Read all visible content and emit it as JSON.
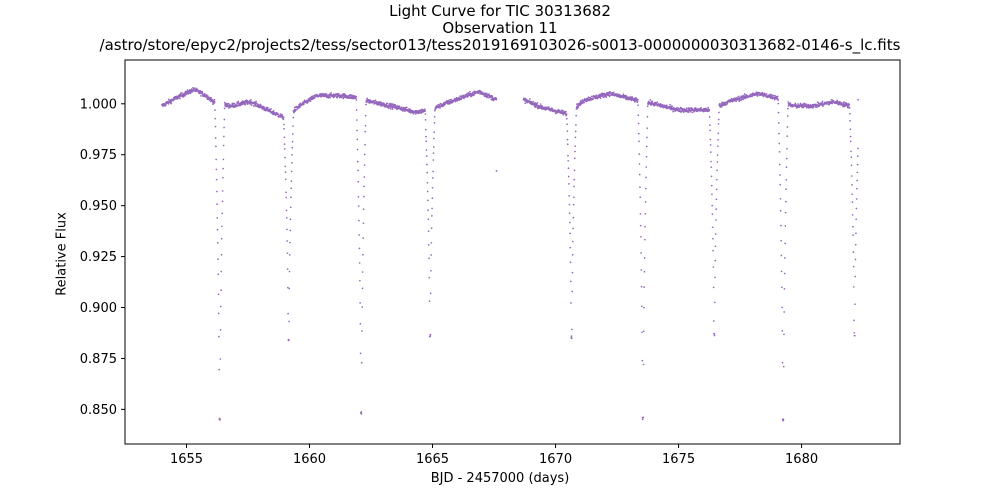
{
  "chart_data": {
    "type": "scatter",
    "title_lines": [
      "Light Curve for TIC 30313682",
      "Observation 11",
      "/astro/store/epyc2/projects2/tess/sector013/tess2019169103026-s0013-0000000030313682-0146-s_lc.fits"
    ],
    "xlabel": "BJD - 2457000 (days)",
    "ylabel": "Relative Flux",
    "xlim": [
      1652.5,
      1684.0
    ],
    "ylim": [
      0.833,
      1.0215
    ],
    "xticks": [
      1655,
      1660,
      1665,
      1670,
      1675,
      1680
    ],
    "xtick_labels": [
      "1655",
      "1660",
      "1665",
      "1670",
      "1675",
      "1680"
    ],
    "yticks": [
      0.85,
      0.875,
      0.9,
      0.925,
      0.95,
      0.975,
      1.0
    ],
    "ytick_labels": [
      "0.850",
      "0.875",
      "0.900",
      "0.925",
      "0.950",
      "0.975",
      "1.000"
    ],
    "marker_color": "#9467bd",
    "segments": [
      {
        "start": 1654.0,
        "end": 1667.6
      },
      {
        "start": 1668.7,
        "end": 1682.3
      }
    ],
    "baseline": [
      [
        1654.0,
        0.999
      ],
      [
        1654.6,
        1.003
      ],
      [
        1655.3,
        1.007
      ],
      [
        1655.8,
        1.004
      ],
      [
        1656.2,
        1.0
      ],
      [
        1656.8,
        0.999
      ],
      [
        1657.6,
        1.001
      ],
      [
        1658.3,
        0.997
      ],
      [
        1659.0,
        0.993
      ],
      [
        1659.6,
        0.999
      ],
      [
        1660.3,
        1.004
      ],
      [
        1661.3,
        1.004
      ],
      [
        1662.0,
        1.003
      ],
      [
        1662.5,
        1.001
      ],
      [
        1663.3,
        0.999
      ],
      [
        1664.3,
        0.996
      ],
      [
        1664.9,
        0.997
      ],
      [
        1665.5,
        1.0
      ],
      [
        1666.4,
        1.004
      ],
      [
        1666.9,
        1.006
      ],
      [
        1667.6,
        1.002
      ],
      [
        1668.7,
        1.002
      ],
      [
        1669.5,
        0.998
      ],
      [
        1670.5,
        0.995
      ],
      [
        1671.2,
        1.002
      ],
      [
        1672.2,
        1.005
      ],
      [
        1673.2,
        1.002
      ],
      [
        1674.0,
        1.0
      ],
      [
        1675.0,
        0.997
      ],
      [
        1676.3,
        0.997
      ],
      [
        1677.0,
        1.001
      ],
      [
        1678.2,
        1.005
      ],
      [
        1679.0,
        1.003
      ],
      [
        1679.6,
        0.999
      ],
      [
        1680.5,
        0.999
      ],
      [
        1681.3,
        1.001
      ],
      [
        1682.3,
        0.998
      ]
    ],
    "eclipses": [
      {
        "center": 1656.35,
        "depth": 0.845,
        "half_width": 0.2
      },
      {
        "center": 1659.15,
        "depth": 0.884,
        "half_width": 0.2
      },
      {
        "center": 1662.1,
        "depth": 0.848,
        "half_width": 0.2
      },
      {
        "center": 1664.9,
        "depth": 0.886,
        "half_width": 0.2
      },
      {
        "center": 1670.65,
        "depth": 0.886,
        "half_width": 0.2
      },
      {
        "center": 1673.55,
        "depth": 0.846,
        "half_width": 0.2
      },
      {
        "center": 1676.45,
        "depth": 0.887,
        "half_width": 0.2
      },
      {
        "center": 1679.25,
        "depth": 0.845,
        "half_width": 0.2
      },
      {
        "center": 1682.15,
        "depth": 0.887,
        "half_width": 0.2
      }
    ],
    "edge_points": [
      {
        "x": 1667.6,
        "y": 0.967
      },
      {
        "x": 1682.3,
        "y": 1.002
      }
    ]
  }
}
